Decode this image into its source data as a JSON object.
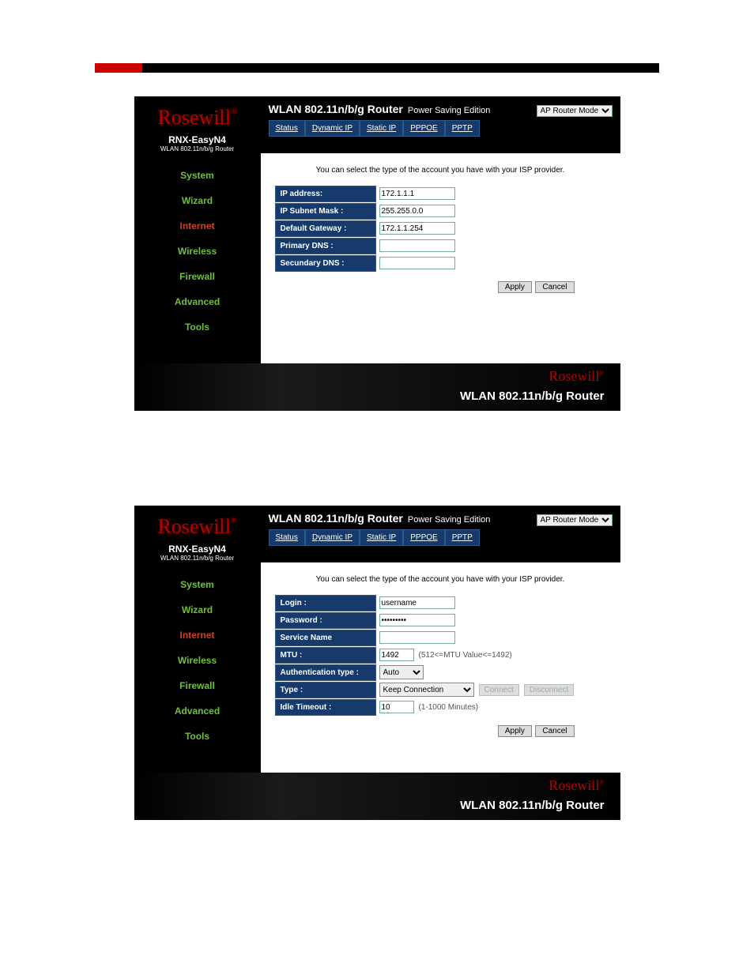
{
  "colors": {
    "sidebar_item": "#6fbf3f",
    "sidebar_active": "#d04020",
    "form_label_bg": "#163a6b",
    "logo_red": "#b00000"
  },
  "common": {
    "brand_script": "Rosewill",
    "brand_reg": "®",
    "model": "RNX-EasyN4",
    "model_sub": "WLAN 802.11n/b/g Router",
    "title_bold": "WLAN 802.11n/b/g Router",
    "title_light": "Power Saving Edition",
    "mode_dropdown": "AP Router Mode",
    "intro": "You can select the type of the account you have with your ISP provider.",
    "footer_script": "Rosewill",
    "footer_text": "WLAN 802.11n/b/g Router",
    "apply": "Apply",
    "cancel": "Cancel"
  },
  "tabs": [
    "Status",
    "Dynamic IP",
    "Static IP",
    "PPPOE",
    "PPTP"
  ],
  "sidebar": {
    "items": [
      "System",
      "Wizard",
      "Internet",
      "Wireless",
      "Firewall",
      "Advanced",
      "Tools"
    ],
    "active_index": 2
  },
  "screen1": {
    "rows": [
      {
        "label": "IP address:",
        "value": "172.1.1.1"
      },
      {
        "label": "IP Subnet Mask :",
        "value": "255.255.0.0"
      },
      {
        "label": "Default Gateway :",
        "value": "172.1.1.254"
      },
      {
        "label": "Primary DNS :",
        "value": ""
      },
      {
        "label": "Secundary DNS :",
        "value": ""
      }
    ]
  },
  "screen2": {
    "login_label": "Login :",
    "login_value": "username",
    "password_label": "Password :",
    "password_value": "password1",
    "service_label": "Service Name",
    "service_value": "",
    "mtu_label": "MTU :",
    "mtu_value": "1492",
    "mtu_hint": "(512<=MTU Value<=1492)",
    "auth_label": "Authentication type :",
    "auth_value": "Auto",
    "type_label": "Type :",
    "type_value": "Keep Connection",
    "connect_btn": "Connect",
    "disconnect_btn": "Disconnect",
    "idle_label": "Idle Timeout :",
    "idle_value": "10",
    "idle_hint": "(1-1000 Minutes)"
  }
}
